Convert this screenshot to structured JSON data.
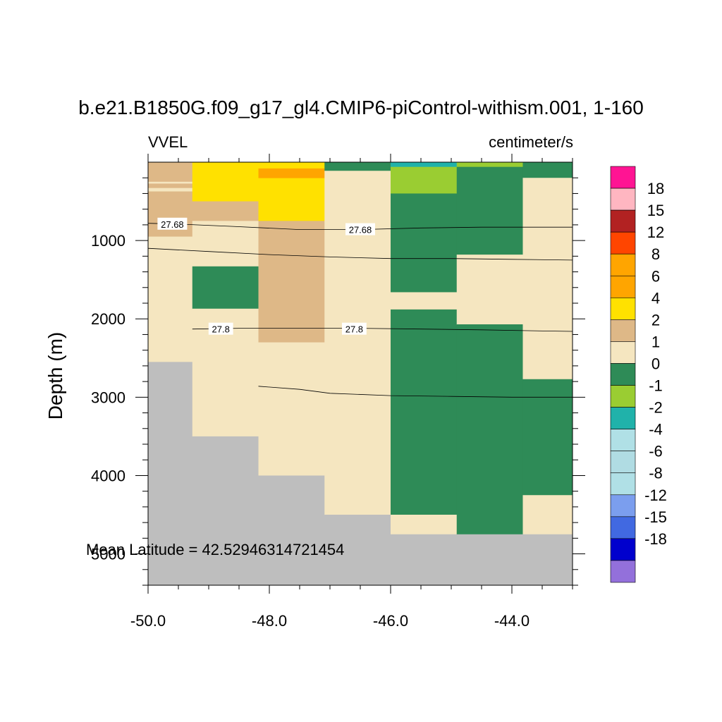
{
  "chart_data": {
    "type": "heatmap",
    "title": "b.e21.B1850G.f09_g17_gl4.CMIP6-piControl-withism.001, 1-160",
    "left_subtitle": "VVEL",
    "right_subtitle": "centimeter/s",
    "ylabel": "Depth (m)",
    "xlabel": "",
    "annotation": "Mean Latitude = 42.52946314721454",
    "xlim": [
      -50.0,
      -43.0
    ],
    "ylim": [
      5400,
      0
    ],
    "y_reversed": true,
    "x_ticks": [
      -50.0,
      -48.0,
      -46.0,
      -44.0
    ],
    "x_tick_labels": [
      "-50.0",
      "-48.0",
      "-46.0",
      "-44.0"
    ],
    "y_ticks": [
      1000,
      2000,
      3000,
      4000,
      5000
    ],
    "y_tick_labels": [
      "1000",
      "2000",
      "3000",
      "4000",
      "5000"
    ],
    "colorbar": {
      "colors": [
        "#9370DB",
        "#0000CD",
        "#4169E1",
        "#7B9EEE",
        "#B0E0E6",
        "#B0DCE3",
        "#B0E0E6",
        "#20B2AA",
        "#9ACD32",
        "#2E8B57",
        "#F5E6C0",
        "#DEB887",
        "#FFE100",
        "#FFA500",
        "#FFA500",
        "#FF4500",
        "#B22222",
        "#FFB6C1",
        "#FF1493"
      ],
      "labels": [
        "-18",
        "-15",
        "-12",
        "-8",
        "-6",
        "-4",
        "-2",
        "-1",
        "0",
        "1",
        "2",
        "4",
        "6",
        "8",
        "12",
        "15",
        "18"
      ]
    },
    "cells": [
      {
        "x0": -50.0,
        "x1": -49.27,
        "y0": 0,
        "y1": 950,
        "color": "#DEB887"
      },
      {
        "x0": -50.0,
        "x1": -49.27,
        "y0": 250,
        "y1": 270,
        "color": "#F5E6C0"
      },
      {
        "x0": -50.0,
        "x1": -49.27,
        "y0": 330,
        "y1": 370,
        "color": "#F5E6C0"
      },
      {
        "x0": -50.0,
        "x1": -49.27,
        "y0": 950,
        "y1": 2550,
        "color": "#F5E6C0"
      },
      {
        "x0": -50.0,
        "x1": -49.27,
        "y0": 2550,
        "y1": 5400,
        "color": "#BEBEBE"
      },
      {
        "x0": -49.27,
        "x1": -48.18,
        "y0": 0,
        "y1": 500,
        "color": "#FFE100"
      },
      {
        "x0": -49.27,
        "x1": -48.18,
        "y0": 500,
        "y1": 750,
        "color": "#DEB887"
      },
      {
        "x0": -49.27,
        "x1": -48.18,
        "y0": 750,
        "y1": 1330,
        "color": "#F5E6C0"
      },
      {
        "x0": -49.27,
        "x1": -48.18,
        "y0": 1330,
        "y1": 1870,
        "color": "#2E8B57"
      },
      {
        "x0": -49.27,
        "x1": -48.18,
        "y0": 1870,
        "y1": 3500,
        "color": "#F5E6C0"
      },
      {
        "x0": -49.27,
        "x1": -48.18,
        "y0": 3500,
        "y1": 5400,
        "color": "#BEBEBE"
      },
      {
        "x0": -48.18,
        "x1": -47.09,
        "y0": 0,
        "y1": 750,
        "color": "#FFE100"
      },
      {
        "x0": -48.18,
        "x1": -47.09,
        "y0": 80,
        "y1": 200,
        "color": "#FFA500"
      },
      {
        "x0": -48.18,
        "x1": -47.09,
        "y0": 750,
        "y1": 2300,
        "color": "#DEB887"
      },
      {
        "x0": -48.18,
        "x1": -47.09,
        "y0": 2300,
        "y1": 4000,
        "color": "#F5E6C0"
      },
      {
        "x0": -48.18,
        "x1": -47.09,
        "y0": 4000,
        "y1": 5400,
        "color": "#BEBEBE"
      },
      {
        "x0": -47.09,
        "x1": -46.0,
        "y0": 0,
        "y1": 110,
        "color": "#2E8B57"
      },
      {
        "x0": -47.09,
        "x1": -46.0,
        "y0": 110,
        "y1": 4500,
        "color": "#F5E6C0"
      },
      {
        "x0": -47.09,
        "x1": -46.0,
        "y0": 4500,
        "y1": 5400,
        "color": "#BEBEBE"
      },
      {
        "x0": -46.0,
        "x1": -44.91,
        "y0": 0,
        "y1": 60,
        "color": "#20B2AA"
      },
      {
        "x0": -46.0,
        "x1": -44.91,
        "y0": 60,
        "y1": 400,
        "color": "#9ACD32"
      },
      {
        "x0": -46.0,
        "x1": -44.91,
        "y0": 400,
        "y1": 1660,
        "color": "#2E8B57"
      },
      {
        "x0": -46.0,
        "x1": -44.91,
        "y0": 1660,
        "y1": 1880,
        "color": "#F5E6C0"
      },
      {
        "x0": -46.0,
        "x1": -44.91,
        "y0": 1880,
        "y1": 4500,
        "color": "#2E8B57"
      },
      {
        "x0": -46.0,
        "x1": -44.91,
        "y0": 4500,
        "y1": 4750,
        "color": "#F5E6C0"
      },
      {
        "x0": -46.0,
        "x1": -44.91,
        "y0": 4750,
        "y1": 5400,
        "color": "#BEBEBE"
      },
      {
        "x0": -44.91,
        "x1": -43.82,
        "y0": 0,
        "y1": 60,
        "color": "#9ACD32"
      },
      {
        "x0": -44.91,
        "x1": -43.82,
        "y0": 60,
        "y1": 1180,
        "color": "#2E8B57"
      },
      {
        "x0": -44.91,
        "x1": -43.82,
        "y0": 1180,
        "y1": 2070,
        "color": "#F5E6C0"
      },
      {
        "x0": -44.91,
        "x1": -43.82,
        "y0": 2070,
        "y1": 4750,
        "color": "#2E8B57"
      },
      {
        "x0": -44.91,
        "x1": -43.82,
        "y0": 4750,
        "y1": 5400,
        "color": "#BEBEBE"
      },
      {
        "x0": -43.82,
        "x1": -43.0,
        "y0": 0,
        "y1": 200,
        "color": "#2E8B57"
      },
      {
        "x0": -43.82,
        "x1": -43.0,
        "y0": 200,
        "y1": 2770,
        "color": "#F5E6C0"
      },
      {
        "x0": -43.82,
        "x1": -43.0,
        "y0": 2770,
        "y1": 4250,
        "color": "#2E8B57"
      },
      {
        "x0": -43.82,
        "x1": -43.0,
        "y0": 4250,
        "y1": 4750,
        "color": "#F5E6C0"
      },
      {
        "x0": -43.82,
        "x1": -43.0,
        "y0": 4750,
        "y1": 5400,
        "color": "#BEBEBE"
      }
    ],
    "contours": [
      {
        "label": "27.68",
        "points": [
          [
            -50.0,
            780
          ],
          [
            -49.5,
            790
          ],
          [
            -48.6,
            820
          ],
          [
            -47.5,
            860
          ],
          [
            -46.5,
            860
          ],
          [
            -45.5,
            840
          ],
          [
            -44.5,
            830
          ],
          [
            -43.0,
            830
          ]
        ],
        "label_positions": [
          [
            -49.6,
            790
          ],
          [
            -46.5,
            860
          ]
        ]
      },
      {
        "label": "",
        "points": [
          [
            -50.0,
            1100
          ],
          [
            -49.0,
            1140
          ],
          [
            -48.0,
            1180
          ],
          [
            -47.0,
            1210
          ],
          [
            -46.0,
            1230
          ],
          [
            -45.0,
            1230
          ],
          [
            -44.0,
            1240
          ],
          [
            -43.0,
            1250
          ]
        ],
        "label_positions": []
      },
      {
        "label": "27.8",
        "points": [
          [
            -49.27,
            2130
          ],
          [
            -48.5,
            2120
          ],
          [
            -47.5,
            2120
          ],
          [
            -46.5,
            2120
          ],
          [
            -45.5,
            2130
          ],
          [
            -44.5,
            2140
          ],
          [
            -43.82,
            2150
          ],
          [
            -43.0,
            2160
          ]
        ],
        "label_positions": [
          [
            -48.8,
            2130
          ],
          [
            -46.6,
            2130
          ]
        ]
      },
      {
        "label": "",
        "points": [
          [
            -48.18,
            2860
          ],
          [
            -47.5,
            2900
          ],
          [
            -47.0,
            2950
          ],
          [
            -46.0,
            2980
          ],
          [
            -45.0,
            2990
          ],
          [
            -44.0,
            3000
          ],
          [
            -43.0,
            3000
          ]
        ],
        "label_positions": []
      }
    ]
  }
}
